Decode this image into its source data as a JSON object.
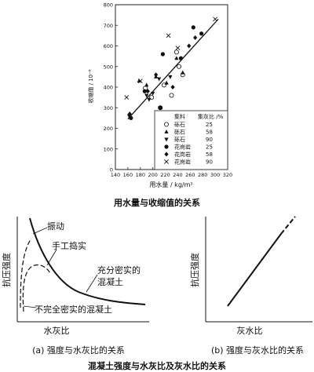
{
  "chart_data": [
    {
      "type": "scatter",
      "title": "",
      "ylabel": "收缩值 / 10⁻⁶",
      "xlabel": "用水量 / kg/m³",
      "xlim": [
        140,
        320
      ],
      "ylim": [
        0,
        800
      ],
      "xticks": [
        140,
        160,
        180,
        200,
        220,
        240,
        260,
        280,
        300,
        320
      ],
      "yticks": [
        0,
        100,
        200,
        300,
        400,
        500,
        600,
        700,
        800
      ],
      "legend": {
        "header": [
          "集料",
          "集灰比 /%"
        ],
        "placement": "bottom-right",
        "entries": [
          {
            "marker": "circle-open",
            "aggregate": "砾石",
            "ratio": "25"
          },
          {
            "marker": "triangle-up",
            "aggregate": "砾石",
            "ratio": "58"
          },
          {
            "marker": "triangle-down",
            "aggregate": "砾石",
            "ratio": "90"
          },
          {
            "marker": "circle-filled",
            "aggregate": "花岗岩",
            "ratio": "25"
          },
          {
            "marker": "diamond",
            "aggregate": "花岗岩",
            "ratio": "58"
          },
          {
            "marker": "x",
            "aggregate": "花岗岩",
            "ratio": "90"
          }
        ]
      },
      "trend_line": {
        "x": [
          160,
          305
        ],
        "y": [
          245,
          730
        ]
      },
      "series": [
        {
          "marker": "circle-open",
          "points": [
            [
              188,
              395
            ],
            [
              198,
              350
            ],
            [
              218,
              410
            ],
            [
              230,
              360
            ],
            [
              238,
              570
            ],
            [
              242,
              500
            ],
            [
              248,
              460
            ],
            [
              212,
              300
            ]
          ]
        },
        {
          "marker": "triangle-up",
          "points": [
            [
              178,
              430
            ],
            [
              190,
              410
            ],
            [
              205,
              450
            ],
            [
              222,
              420
            ],
            [
              238,
              540
            ],
            [
              248,
              470
            ]
          ]
        },
        {
          "marker": "triangle-down",
          "points": [
            [
              162,
              260
            ],
            [
              190,
              360
            ],
            [
              194,
              340
            ],
            [
              200,
              370
            ],
            [
              210,
              440
            ],
            [
              228,
              450
            ]
          ]
        },
        {
          "marker": "circle-filled",
          "points": [
            [
              165,
              250
            ],
            [
              187,
              380
            ],
            [
              212,
              300
            ],
            [
              216,
              560
            ],
            [
              245,
              540
            ],
            [
              265,
              690
            ],
            [
              278,
              660
            ]
          ]
        },
        {
          "marker": "diamond",
          "points": [
            [
              163,
              270
            ],
            [
              192,
              380
            ],
            [
              205,
              460
            ],
            [
              232,
              400
            ],
            [
              258,
              600
            ],
            [
              268,
              640
            ]
          ]
        },
        {
          "marker": "x",
          "points": [
            [
              158,
              350
            ],
            [
              180,
              430
            ],
            [
              225,
              650
            ],
            [
              240,
              590
            ],
            [
              300,
              730
            ]
          ]
        }
      ],
      "caption": "用水量与收缩值的关系"
    },
    {
      "type": "line",
      "ylabel": "抗压强度",
      "xlabel": "水灰比",
      "annotations": [
        "振动",
        "手工捣实",
        "充分密实的混凝土",
        "不完全密实的混凝土"
      ],
      "caption": "(a) 强度与水灰比的关系"
    },
    {
      "type": "line",
      "ylabel": "抗压强度",
      "xlabel": "灰水比",
      "caption": "(b) 强度与灰水比的关系"
    }
  ],
  "figure_caption": "混凝土强度与水灰比及灰水比的关系"
}
